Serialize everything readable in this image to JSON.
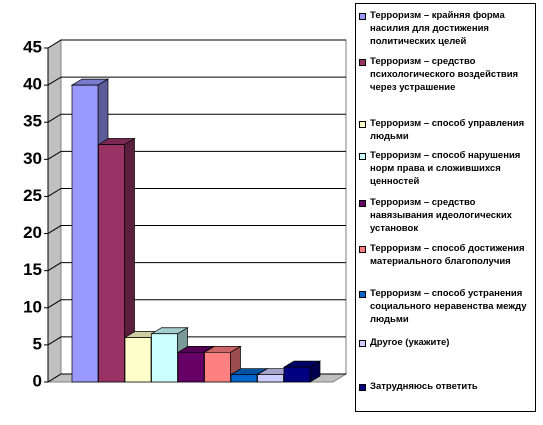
{
  "chart_data": {
    "type": "bar3d",
    "categories": [
      "Терроризм – крайняя форма насилия для достижения политических целей",
      "Терроризм – средство психологического воздействия через устрашение",
      "Терроризм – способ управления людьми",
      "Терроризм – способ нарушения норм права и сложившихся ценностей",
      "Терроризм – средство навязывания идеологических установок",
      "Терроризм – способ достижения материального благополучия",
      "Терроризм – способ устранения социального неравенства между людьми",
      "Другое (укажите)",
      "Затрудняюсь ответить"
    ],
    "values": [
      40,
      32,
      6,
      6.5,
      4,
      4,
      1,
      1,
      2
    ],
    "colors": [
      "#9999ff",
      "#993366",
      "#ffffcc",
      "#ccffff",
      "#660066",
      "#ff8080",
      "#0066cc",
      "#ccccff",
      "#000080"
    ],
    "ylim": [
      0,
      45
    ],
    "yticks": [
      0,
      5,
      10,
      15,
      20,
      25,
      30,
      35,
      40,
      45
    ],
    "grid": true
  }
}
